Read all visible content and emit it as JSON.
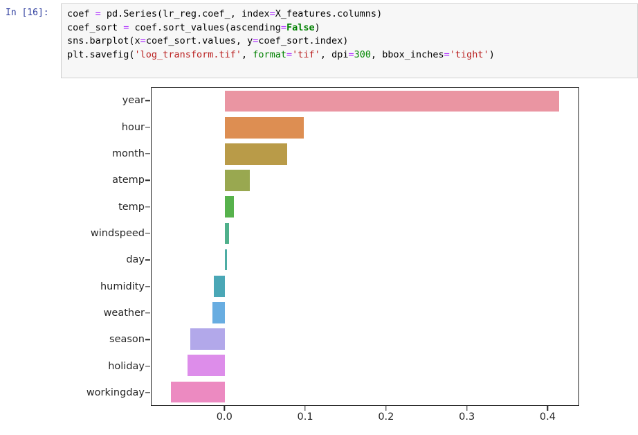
{
  "notebook": {
    "prompt": "In [16]:",
    "code_lines": [
      [
        {
          "c": "p",
          "t": "coef "
        },
        {
          "c": "op",
          "t": "="
        },
        {
          "c": "p",
          "t": " pd.Series(lr_reg.coef_, index"
        },
        {
          "c": "op",
          "t": "="
        },
        {
          "c": "p",
          "t": "X_features.columns)"
        }
      ],
      [
        {
          "c": "p",
          "t": "coef_sort "
        },
        {
          "c": "op",
          "t": "="
        },
        {
          "c": "p",
          "t": " coef.sort_values(ascending"
        },
        {
          "c": "op",
          "t": "="
        },
        {
          "c": "kw",
          "t": "False"
        },
        {
          "c": "p",
          "t": ")"
        }
      ],
      [
        {
          "c": "p",
          "t": "sns.barplot(x"
        },
        {
          "c": "op",
          "t": "="
        },
        {
          "c": "p",
          "t": "coef_sort.values, y"
        },
        {
          "c": "op",
          "t": "="
        },
        {
          "c": "p",
          "t": "coef_sort.index)"
        }
      ],
      [
        {
          "c": "p",
          "t": "plt.savefig("
        },
        {
          "c": "str",
          "t": "'log_transform.tif'"
        },
        {
          "c": "p",
          "t": ", "
        },
        {
          "c": "builtin",
          "t": "format"
        },
        {
          "c": "op",
          "t": "="
        },
        {
          "c": "str",
          "t": "'tif'"
        },
        {
          "c": "p",
          "t": ", dpi"
        },
        {
          "c": "op",
          "t": "="
        },
        {
          "c": "num",
          "t": "300"
        },
        {
          "c": "p",
          "t": ", bbox_inches"
        },
        {
          "c": "op",
          "t": "="
        },
        {
          "c": "str",
          "t": "'tight'"
        },
        {
          "c": "p",
          "t": ")"
        }
      ]
    ]
  },
  "colors": {
    "prompt": "#303F9F",
    "cell_bg": "#f7f7f7",
    "cell_border": "#cfcfcf",
    "operator": "#AA22FF",
    "keyword": "#008000",
    "string": "#BA2121",
    "builtin": "#008000",
    "number": "#008800"
  },
  "chart_data": {
    "type": "bar",
    "orientation": "horizontal",
    "title": "",
    "xlabel": "",
    "ylabel": "",
    "grid": false,
    "legend": null,
    "categories": [
      "year",
      "hour",
      "month",
      "atemp",
      "temp",
      "windspeed",
      "day",
      "humidity",
      "weather",
      "season",
      "holiday",
      "workingday"
    ],
    "values": [
      0.415,
      0.098,
      0.077,
      0.031,
      0.011,
      0.005,
      0.003,
      -0.014,
      -0.015,
      -0.043,
      -0.046,
      -0.067
    ],
    "bar_colors": [
      "#ea95a2",
      "#dd8e52",
      "#b99b48",
      "#99a850",
      "#57b24c",
      "#4fb08b",
      "#4dada4",
      "#4aa7b6",
      "#68ade1",
      "#b2a8ea",
      "#dd8dea",
      "#ec8ac1"
    ],
    "xticks": [
      "0.0",
      "0.1",
      "0.2",
      "0.3",
      "0.4"
    ],
    "xtick_values": [
      0.0,
      0.1,
      0.2,
      0.3,
      0.4
    ],
    "xlim": [
      -0.091,
      0.439
    ]
  }
}
